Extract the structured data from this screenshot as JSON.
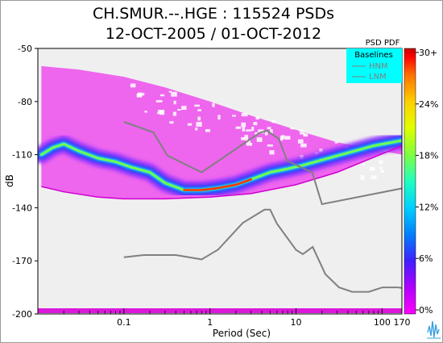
{
  "header": {
    "title_line1": "CH.SMUR.--.HGE : 115524 PSDs",
    "title_line2": "12-OCT-2005 / 01-OCT-2012"
  },
  "colorbar": {
    "title": "PSD PDF",
    "ticks": [
      "30+",
      "24%",
      "18%",
      "12%",
      "6%",
      "0%"
    ],
    "stops": [
      "#ff00ff",
      "#b000ff",
      "#4020ff",
      "#0080ff",
      "#00d0ff",
      "#20ffc0",
      "#80ff40",
      "#e0ff00",
      "#ffd000",
      "#ff7000",
      "#ff0000",
      "#c00000"
    ]
  },
  "legend": {
    "title": "Baselines",
    "items": [
      "HNM",
      "LNM"
    ],
    "background": "#00ffff"
  },
  "chart_data": {
    "type": "heatmap",
    "title": "CH.SMUR.--.HGE : 115524 PSDs",
    "subtitle": "12-OCT-2005 / 01-OCT-2012",
    "xlabel": "Period (Sec)",
    "ylabel": "dB",
    "x_scale": "log",
    "xlim": [
      0.01,
      170
    ],
    "ylim": [
      -200,
      -50
    ],
    "x_ticks": [
      {
        "value": 0.1,
        "label": "0.1"
      },
      {
        "value": 1,
        "label": "1"
      },
      {
        "value": 10,
        "label": "10"
      },
      {
        "value": 100,
        "label": "100"
      },
      {
        "value": 170,
        "label": "170"
      }
    ],
    "y_ticks": [
      -50,
      -80,
      -110,
      -140,
      -170,
      -200
    ],
    "colorbar_range_percent": [
      0,
      30
    ],
    "mode_curve": {
      "period": [
        0.011,
        0.015,
        0.02,
        0.03,
        0.05,
        0.08,
        0.12,
        0.2,
        0.3,
        0.5,
        0.8,
        1.2,
        2,
        3,
        5,
        8,
        12,
        20,
        40,
        80,
        170
      ],
      "db": [
        -110,
        -106,
        -104,
        -108,
        -112,
        -114,
        -117,
        -120,
        -126,
        -130,
        -130,
        -129,
        -127,
        -124,
        -120,
        -118,
        -116,
        -113,
        -109,
        -105,
        -102
      ]
    },
    "lower_bound_curve": {
      "period": [
        0.011,
        0.02,
        0.05,
        0.1,
        0.3,
        1,
        3,
        10,
        30,
        170
      ],
      "db": [
        -128,
        -131,
        -134,
        -135,
        -135,
        -134,
        -132,
        -127,
        -120,
        -105
      ]
    },
    "upper_envelope": {
      "period": [
        0.011,
        0.03,
        0.1,
        0.3,
        1,
        3,
        10,
        30,
        100,
        170
      ],
      "db": [
        -60,
        -62,
        -66,
        -72,
        -80,
        -88,
        -96,
        -103,
        -108,
        -110
      ]
    },
    "series": [
      {
        "name": "HNM",
        "period": [
          0.1,
          0.22,
          0.32,
          0.8,
          3.8,
          4.6,
          6.3,
          7.9,
          15.4,
          20,
          354.8
        ],
        "db": [
          -91.5,
          -97.4,
          -110.5,
          -120,
          -97.6,
          -96.5,
          -101,
          -113.5,
          -120,
          -138,
          -126
        ]
      },
      {
        "name": "LNM",
        "period": [
          0.1,
          0.17,
          0.4,
          0.8,
          1.24,
          2.4,
          4.3,
          5,
          6,
          10,
          12,
          15.6,
          21.9,
          31.6,
          45,
          70,
          101,
          154,
          328,
          600
        ],
        "db": [
          -168,
          -166.7,
          -166.7,
          -169.2,
          -163.7,
          -148.6,
          -141.1,
          -141.1,
          -149,
          -163.8,
          -166.2,
          -162.1,
          -177.5,
          -185,
          -187.5,
          -187.5,
          -185,
          -185,
          -187.5,
          -184.4
        ]
      }
    ]
  }
}
